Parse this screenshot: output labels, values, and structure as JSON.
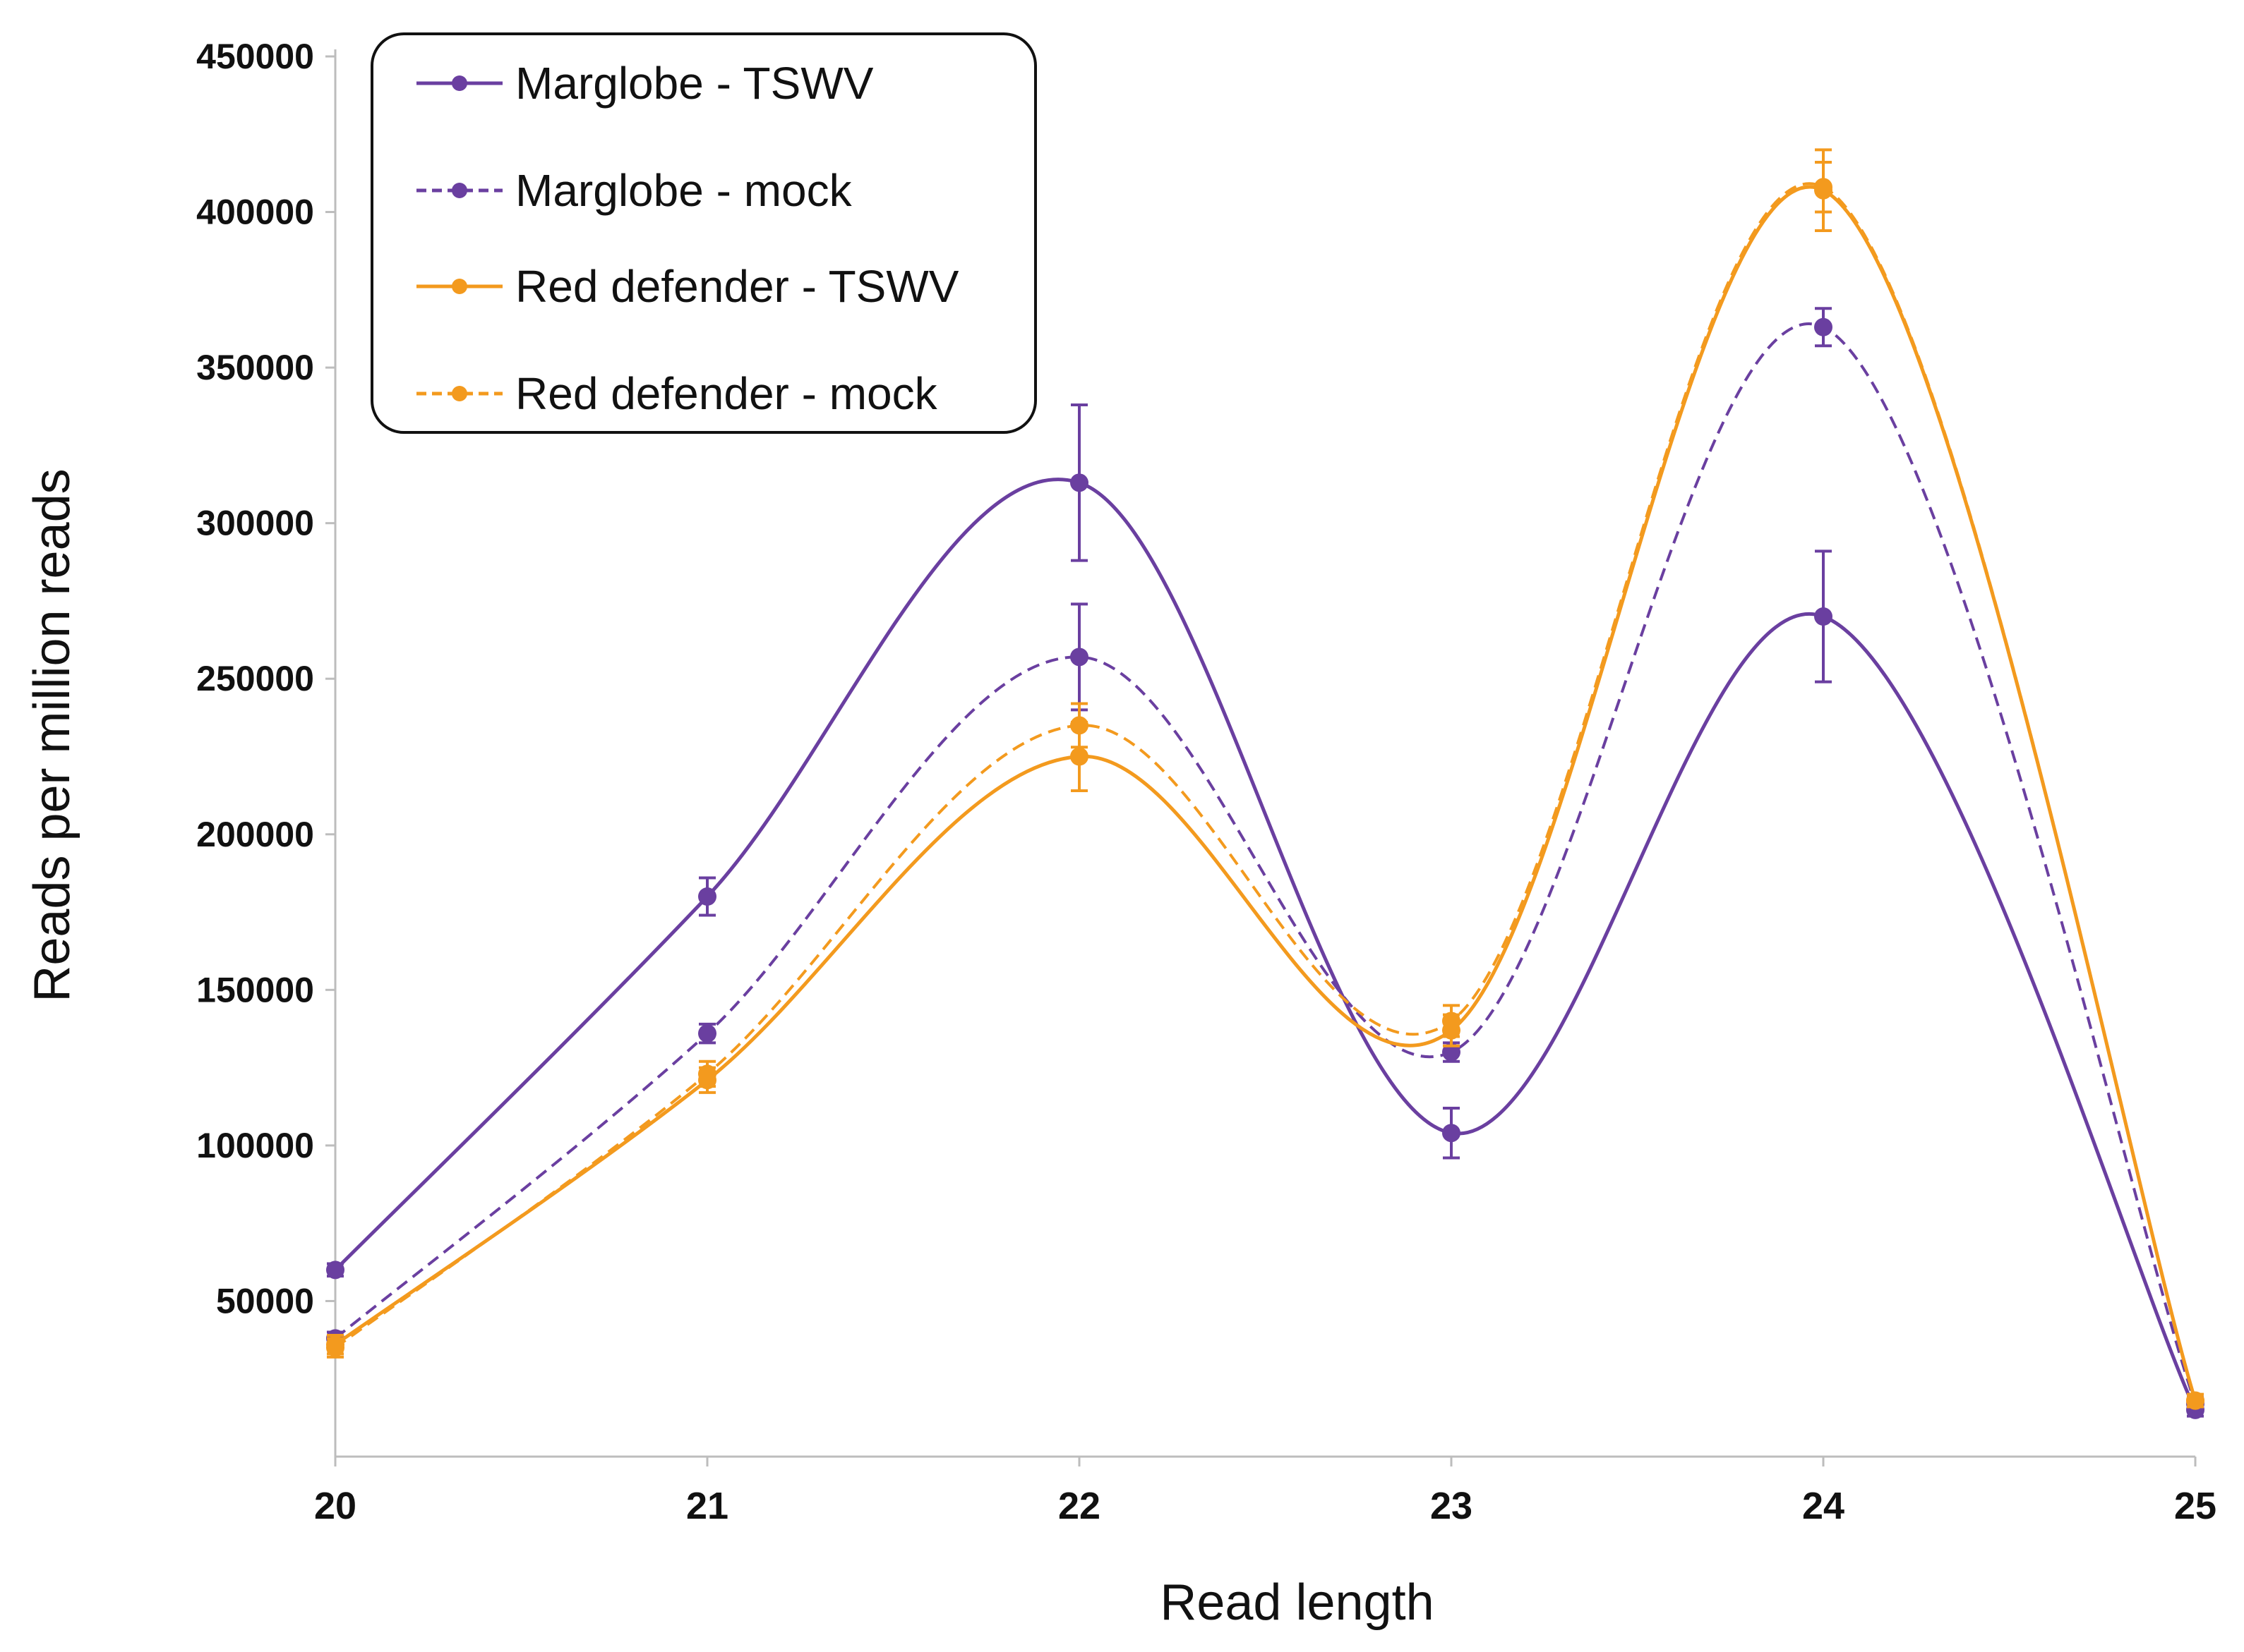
{
  "chart_data": {
    "type": "line",
    "xlabel": "Read length",
    "ylabel": "Reads per million reads",
    "x": [
      20,
      21,
      22,
      23,
      24,
      25
    ],
    "xlim": [
      20,
      25
    ],
    "ylim": [
      0,
      450000
    ],
    "yticks": [
      50000,
      100000,
      150000,
      200000,
      250000,
      300000,
      350000,
      400000,
      450000
    ],
    "grid": false,
    "legend_position": "top-left",
    "series": [
      {
        "name": "Marglobe - TSWV",
        "color": "#6A3FA0",
        "dashed": false,
        "values": [
          60000,
          180000,
          313000,
          104000,
          270000,
          15000
        ],
        "errors": [
          2000,
          6000,
          25000,
          8000,
          21000,
          2000
        ]
      },
      {
        "name": "Marglobe - mock",
        "color": "#6A3FA0",
        "dashed": true,
        "values": [
          38000,
          136000,
          257000,
          130000,
          363000,
          17000
        ],
        "errors": [
          2000,
          3000,
          17000,
          3000,
          6000,
          2000
        ]
      },
      {
        "name": "Red defender - TSWV",
        "color": "#F39A1E",
        "dashed": false,
        "values": [
          36000,
          121000,
          225000,
          137000,
          407000,
          18000
        ],
        "errors": [
          3000,
          4000,
          11000,
          5000,
          13000,
          2000
        ]
      },
      {
        "name": "Red defender - mock",
        "color": "#F39A1E",
        "dashed": true,
        "values": [
          35000,
          123000,
          235000,
          140000,
          408000,
          18000
        ],
        "errors": [
          3000,
          4000,
          7000,
          5000,
          8000,
          2000
        ]
      }
    ]
  }
}
